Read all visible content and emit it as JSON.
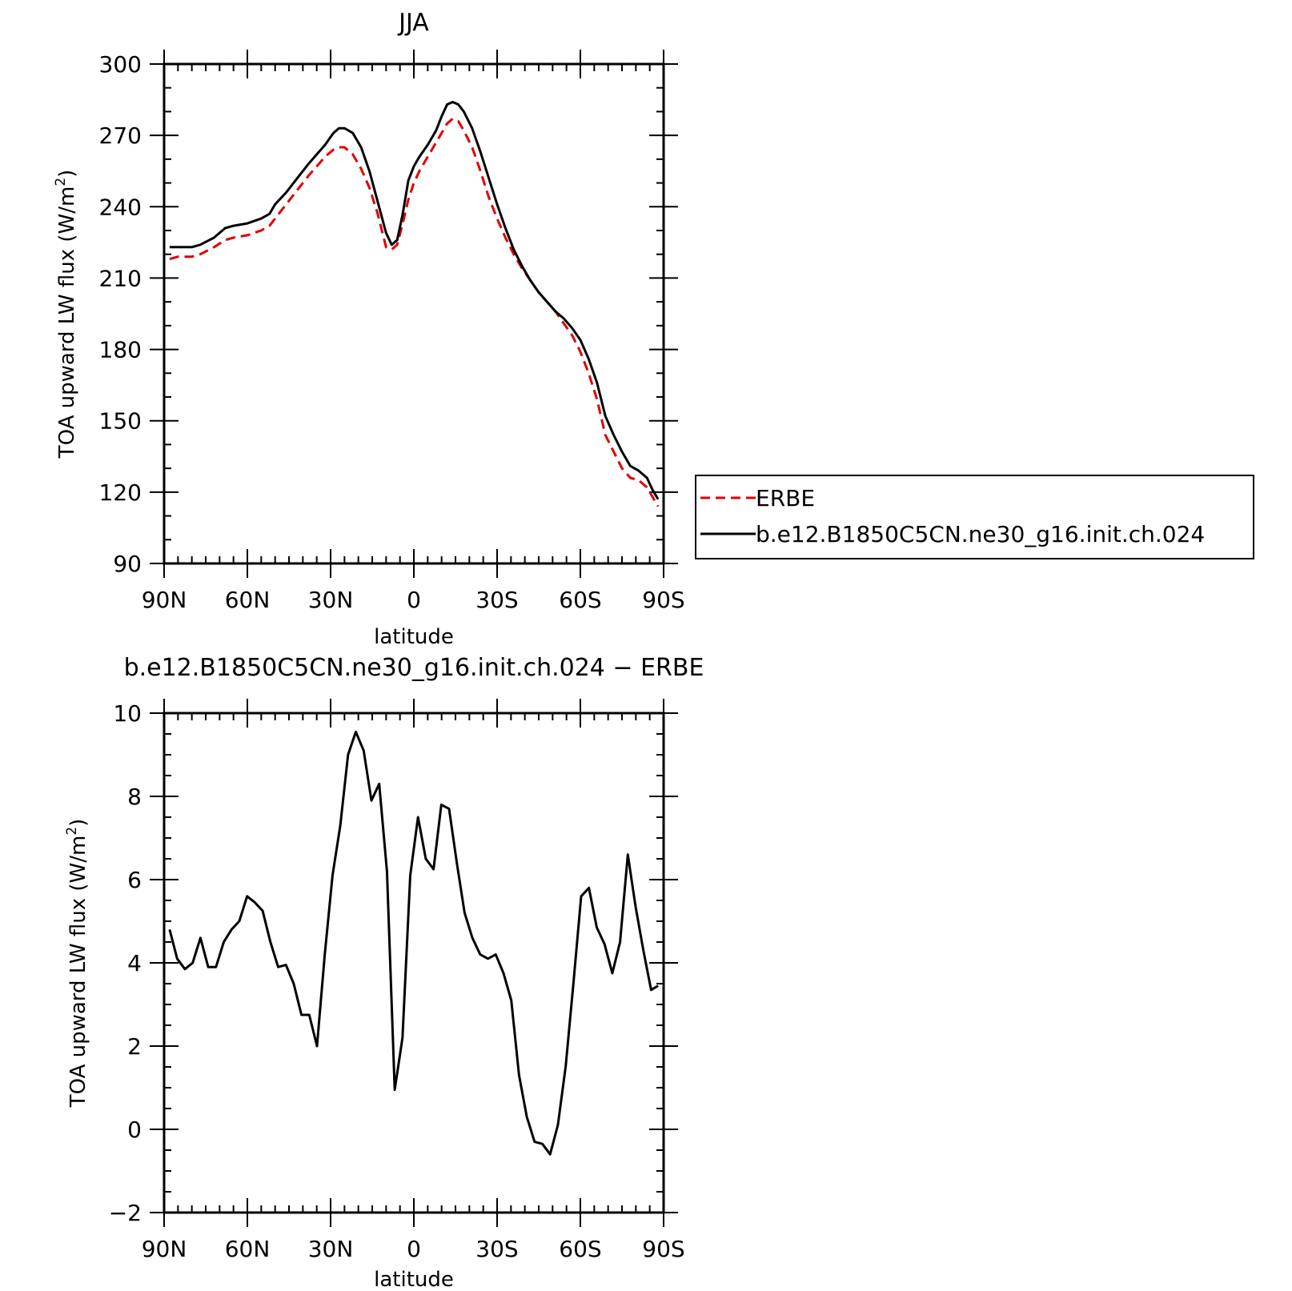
{
  "chart_data": [
    {
      "type": "line",
      "title": "JJA",
      "xlabel": "latitude",
      "ylabel": "TOA upward LW flux (W/m²)",
      "ylabel_parts": {
        "main": "TOA upward LW flux (W/m",
        "sup": "2",
        "end": ")"
      },
      "xlim": [
        90,
        -90
      ],
      "ylim": [
        90,
        300
      ],
      "xticks": [
        {
          "v": 90,
          "label": "90N"
        },
        {
          "v": 60,
          "label": "60N"
        },
        {
          "v": 30,
          "label": "30N"
        },
        {
          "v": 0,
          "label": "0"
        },
        {
          "v": -30,
          "label": "30S"
        },
        {
          "v": -60,
          "label": "60S"
        },
        {
          "v": -90,
          "label": "90S"
        }
      ],
      "yticks": [
        90,
        120,
        150,
        180,
        210,
        240,
        270,
        300
      ],
      "yminor_step": 10,
      "xminor_step": 5,
      "legend_position": "right",
      "series": [
        {
          "name": "ERBE",
          "color": "#e00000",
          "dash": true,
          "x": [
            88,
            85,
            80,
            77,
            72,
            68,
            65,
            60,
            55,
            52,
            50,
            46,
            42,
            38,
            35,
            32,
            29,
            27,
            25,
            22,
            19,
            16,
            13,
            10,
            8,
            6,
            4,
            2,
            0,
            -2,
            -5,
            -8,
            -10,
            -12,
            -14,
            -16,
            -18,
            -21,
            -24,
            -27,
            -30,
            -33,
            -36,
            -39,
            -42,
            -45,
            -48,
            -51,
            -54,
            -57,
            -60,
            -63,
            -66,
            -69,
            -72,
            -75,
            -78,
            -81,
            -84,
            -86,
            -88
          ],
          "y": [
            218,
            219,
            219,
            220,
            223,
            226,
            227,
            228,
            230,
            232,
            235,
            241,
            247,
            253,
            257,
            261,
            264,
            265,
            265,
            262,
            256,
            248,
            237,
            223,
            222,
            224,
            233,
            243,
            250,
            255,
            261,
            267,
            271,
            275,
            277,
            276,
            272,
            265,
            255,
            244,
            235,
            227,
            220,
            214,
            209,
            204,
            200,
            196,
            191,
            186,
            179,
            170,
            159,
            144,
            137,
            130,
            126,
            125,
            122,
            118,
            114
          ]
        },
        {
          "name": "b.e12.B1850C5CN.ne30_g16.init.ch.024",
          "color": "#000000",
          "dash": false,
          "x": [
            88,
            85,
            80,
            77,
            72,
            68,
            65,
            60,
            55,
            52,
            50,
            46,
            42,
            38,
            35,
            32,
            29,
            27,
            25,
            22,
            19,
            16,
            13,
            10,
            8,
            6,
            4,
            2,
            0,
            -2,
            -5,
            -8,
            -10,
            -12,
            -14,
            -16,
            -18,
            -21,
            -24,
            -27,
            -30,
            -33,
            -36,
            -39,
            -42,
            -45,
            -48,
            -51,
            -54,
            -57,
            -60,
            -63,
            -66,
            -69,
            -72,
            -75,
            -78,
            -81,
            -84,
            -86,
            -88
          ],
          "y": [
            223,
            223,
            223,
            224,
            227,
            231,
            232,
            233,
            235,
            237,
            241,
            246,
            252,
            258,
            262,
            266,
            271,
            273,
            273,
            271,
            265,
            255,
            242,
            229,
            224,
            226,
            237,
            251,
            257,
            261,
            266,
            272,
            278,
            283,
            284,
            283,
            280,
            273,
            263,
            252,
            241,
            231,
            222,
            215,
            209,
            204,
            200,
            196,
            193,
            189,
            184,
            176,
            166,
            152,
            144,
            137,
            131,
            129,
            126,
            121,
            117
          ]
        }
      ]
    },
    {
      "type": "line",
      "title": "b.e12.B1850C5CN.ne30_g16.init.ch.024 − ERBE",
      "xlabel": "latitude",
      "ylabel": "TOA upward LW flux (W/m²)",
      "ylabel_parts": {
        "main": "TOA upward LW flux (W/m",
        "sup": "2",
        "end": ")"
      },
      "xlim": [
        90,
        -90
      ],
      "ylim": [
        -2,
        10
      ],
      "xticks": [
        {
          "v": 90,
          "label": "90N"
        },
        {
          "v": 60,
          "label": "60N"
        },
        {
          "v": 30,
          "label": "30N"
        },
        {
          "v": 0,
          "label": "0"
        },
        {
          "v": -30,
          "label": "30S"
        },
        {
          "v": -60,
          "label": "60S"
        },
        {
          "v": -90,
          "label": "90S"
        }
      ],
      "yticks": [
        -2,
        0,
        2,
        4,
        6,
        8,
        10
      ],
      "yminor_step": 0.5,
      "xminor_step": 5,
      "series": [
        {
          "name": "",
          "color": "#000000",
          "dash": false,
          "x": [
            88,
            85.3,
            82.5,
            79.7,
            76.9,
            74.1,
            71.3,
            68.5,
            65.7,
            62.9,
            60.1,
            57.3,
            54.5,
            51.7,
            48.9,
            46.1,
            43.3,
            40.5,
            37.7,
            34.9,
            32.1,
            29.3,
            26.5,
            23.7,
            20.9,
            18.1,
            15.3,
            12.5,
            9.7,
            6.9,
            4.1,
            1.3,
            -1.5,
            -4.3,
            -7.1,
            -9.9,
            -12.7,
            -15.5,
            -18.3,
            -21.1,
            -23.9,
            -26.7,
            -29.5,
            -32.3,
            -35.1,
            -37.9,
            -40.7,
            -43.5,
            -46.3,
            -49.1,
            -51.9,
            -54.7,
            -57.5,
            -60.3,
            -63.1,
            -65.9,
            -68.7,
            -71.5,
            -74.3,
            -77.1,
            -79.9,
            -82.7,
            -85.5,
            -88
          ],
          "y": [
            4.8,
            4.1,
            3.85,
            4.0,
            4.6,
            3.9,
            3.9,
            4.5,
            4.8,
            5.0,
            5.6,
            5.45,
            5.25,
            4.5,
            3.9,
            3.95,
            3.5,
            2.75,
            2.75,
            2.0,
            4.2,
            6.1,
            7.3,
            9.0,
            9.55,
            9.1,
            7.9,
            8.3,
            6.2,
            0.95,
            2.2,
            6.1,
            7.5,
            6.5,
            6.25,
            7.8,
            7.7,
            6.4,
            5.2,
            4.6,
            4.2,
            4.1,
            4.2,
            3.75,
            3.1,
            1.3,
            0.3,
            -0.3,
            -0.35,
            -0.6,
            0.1,
            1.5,
            3.5,
            5.6,
            5.8,
            4.85,
            4.45,
            3.75,
            4.5,
            6.6,
            5.35,
            4.3,
            3.35,
            3.45
          ]
        }
      ]
    }
  ]
}
